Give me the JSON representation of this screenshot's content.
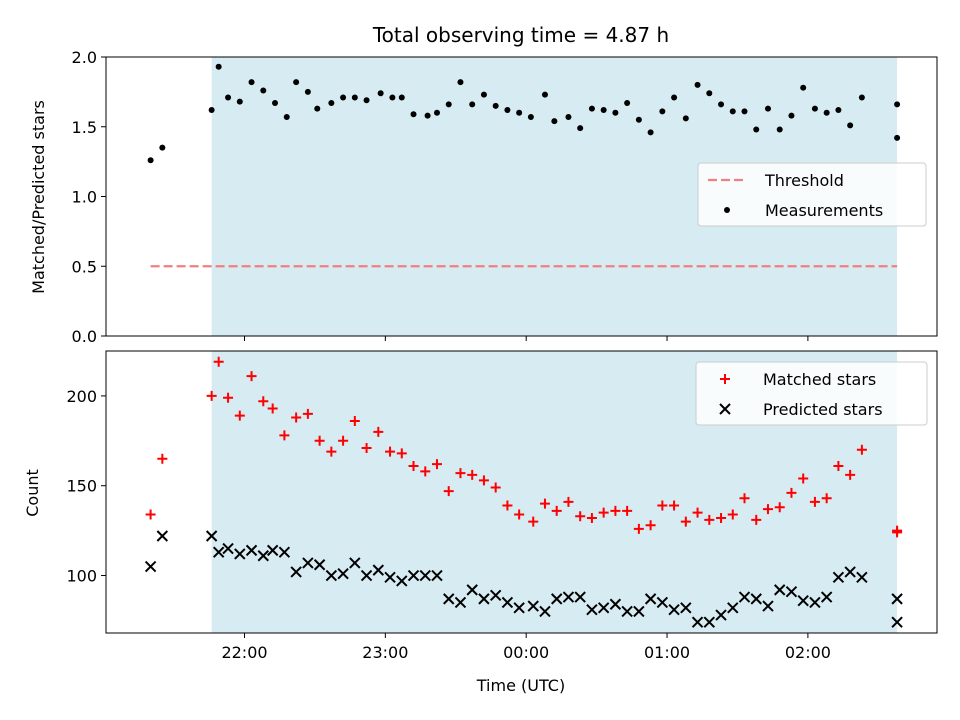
{
  "chart_data": [
    {
      "type": "scatter",
      "title": "Total observing time = 4.87 h",
      "ylabel": "Matched/Predicted stars",
      "xlabel": "",
      "xlim": [
        "21:01",
        "02:55"
      ],
      "ylim": [
        0,
        2.0
      ],
      "yticks": [
        "0.0",
        "0.5",
        "1.0",
        "1.5",
        "2.0"
      ],
      "shaded_interval": [
        "21:46",
        "02:38"
      ],
      "shade_color": "#add8e6",
      "legend": {
        "placement": "right",
        "entries": [
          "Threshold",
          "Measurements"
        ]
      },
      "series": [
        {
          "name": "Threshold",
          "style": "dashed-line",
          "color": "#f08080",
          "points": [
            [
              "21:20",
              0.5
            ],
            [
              "02:38",
              0.5
            ]
          ]
        },
        {
          "name": "Measurements",
          "style": "dot",
          "color": "#000000",
          "points": [
            [
              "21:20",
              1.26
            ],
            [
              "21:25",
              1.35
            ],
            [
              "21:46",
              1.62
            ],
            [
              "21:49",
              1.93
            ],
            [
              "21:53",
              1.71
            ],
            [
              "21:58",
              1.68
            ],
            [
              "22:03",
              1.82
            ],
            [
              "22:08",
              1.76
            ],
            [
              "22:13",
              1.67
            ],
            [
              "22:18",
              1.57
            ],
            [
              "22:22",
              1.82
            ],
            [
              "22:27",
              1.75
            ],
            [
              "22:31",
              1.63
            ],
            [
              "22:37",
              1.67
            ],
            [
              "22:42",
              1.71
            ],
            [
              "22:47",
              1.71
            ],
            [
              "22:52",
              1.69
            ],
            [
              "22:58",
              1.74
            ],
            [
              "23:03",
              1.71
            ],
            [
              "23:07",
              1.71
            ],
            [
              "23:12",
              1.59
            ],
            [
              "23:18",
              1.58
            ],
            [
              "23:22",
              1.6
            ],
            [
              "23:27",
              1.66
            ],
            [
              "23:32",
              1.82
            ],
            [
              "23:37",
              1.66
            ],
            [
              "23:42",
              1.73
            ],
            [
              "23:47",
              1.65
            ],
            [
              "23:52",
              1.62
            ],
            [
              "23:57",
              1.6
            ],
            [
              "00:02",
              1.57
            ],
            [
              "00:08",
              1.73
            ],
            [
              "00:12",
              1.54
            ],
            [
              "00:18",
              1.57
            ],
            [
              "00:23",
              1.49
            ],
            [
              "00:28",
              1.63
            ],
            [
              "00:33",
              1.62
            ],
            [
              "00:38",
              1.6
            ],
            [
              "00:43",
              1.67
            ],
            [
              "00:48",
              1.55
            ],
            [
              "00:53",
              1.46
            ],
            [
              "00:58",
              1.61
            ],
            [
              "01:03",
              1.71
            ],
            [
              "01:08",
              1.56
            ],
            [
              "01:13",
              1.8
            ],
            [
              "01:18",
              1.74
            ],
            [
              "01:23",
              1.66
            ],
            [
              "01:28",
              1.61
            ],
            [
              "01:33",
              1.61
            ],
            [
              "01:38",
              1.48
            ],
            [
              "01:43",
              1.63
            ],
            [
              "01:48",
              1.48
            ],
            [
              "01:53",
              1.58
            ],
            [
              "01:58",
              1.78
            ],
            [
              "02:03",
              1.63
            ],
            [
              "02:08",
              1.6
            ],
            [
              "02:13",
              1.62
            ],
            [
              "02:18",
              1.51
            ],
            [
              "02:23",
              1.71
            ],
            [
              "02:38",
              1.42
            ],
            [
              "02:38",
              1.66
            ]
          ]
        }
      ]
    },
    {
      "type": "scatter",
      "title": "",
      "ylabel": "Count",
      "xlabel": "Time (UTC)",
      "xlim": [
        "21:01",
        "02:55"
      ],
      "ylim": [
        68,
        225
      ],
      "yticks": [
        "100",
        "150",
        "200"
      ],
      "xticks": [
        "22:00",
        "23:00",
        "00:00",
        "01:00",
        "02:00"
      ],
      "shaded_interval": [
        "21:46",
        "02:38"
      ],
      "shade_color": "#add8e6",
      "legend": {
        "placement": "top-right",
        "entries": [
          "Matched stars",
          "Predicted stars"
        ]
      },
      "series": [
        {
          "name": "Matched stars",
          "style": "plus",
          "color": "#ff0000",
          "points": [
            [
              "21:20",
              134
            ],
            [
              "21:25",
              165
            ],
            [
              "21:46",
              200
            ],
            [
              "21:49",
              219
            ],
            [
              "21:53",
              199
            ],
            [
              "21:58",
              189
            ],
            [
              "22:03",
              211
            ],
            [
              "22:08",
              197
            ],
            [
              "22:12",
              193
            ],
            [
              "22:17",
              178
            ],
            [
              "22:22",
              188
            ],
            [
              "22:27",
              190
            ],
            [
              "22:32",
              175
            ],
            [
              "22:37",
              169
            ],
            [
              "22:42",
              175
            ],
            [
              "22:47",
              186
            ],
            [
              "22:52",
              171
            ],
            [
              "22:57",
              180
            ],
            [
              "23:02",
              169
            ],
            [
              "23:07",
              168
            ],
            [
              "23:12",
              161
            ],
            [
              "23:17",
              158
            ],
            [
              "23:22",
              162
            ],
            [
              "23:27",
              147
            ],
            [
              "23:32",
              157
            ],
            [
              "23:37",
              156
            ],
            [
              "23:42",
              153
            ],
            [
              "23:47",
              149
            ],
            [
              "23:52",
              139
            ],
            [
              "23:57",
              134
            ],
            [
              "00:03",
              130
            ],
            [
              "00:08",
              140
            ],
            [
              "00:13",
              136
            ],
            [
              "00:18",
              141
            ],
            [
              "00:23",
              133
            ],
            [
              "00:28",
              132
            ],
            [
              "00:33",
              135
            ],
            [
              "00:38",
              136
            ],
            [
              "00:43",
              136
            ],
            [
              "00:48",
              126
            ],
            [
              "00:53",
              128
            ],
            [
              "00:58",
              139
            ],
            [
              "01:03",
              139
            ],
            [
              "01:08",
              130
            ],
            [
              "01:13",
              135
            ],
            [
              "01:18",
              131
            ],
            [
              "01:23",
              132
            ],
            [
              "01:28",
              134
            ],
            [
              "01:33",
              143
            ],
            [
              "01:38",
              131
            ],
            [
              "01:43",
              137
            ],
            [
              "01:48",
              138
            ],
            [
              "01:53",
              146
            ],
            [
              "01:58",
              154
            ],
            [
              "02:03",
              141
            ],
            [
              "02:08",
              143
            ],
            [
              "02:13",
              161
            ],
            [
              "02:18",
              156
            ],
            [
              "02:23",
              170
            ],
            [
              "02:38",
              125
            ],
            [
              "02:38",
              124
            ]
          ]
        },
        {
          "name": "Predicted stars",
          "style": "x",
          "color": "#000000",
          "points": [
            [
              "21:20",
              105
            ],
            [
              "21:25",
              122
            ],
            [
              "21:46",
              122
            ],
            [
              "21:49",
              113
            ],
            [
              "21:53",
              115
            ],
            [
              "21:58",
              112
            ],
            [
              "22:03",
              114
            ],
            [
              "22:08",
              111
            ],
            [
              "22:12",
              114
            ],
            [
              "22:17",
              113
            ],
            [
              "22:22",
              102
            ],
            [
              "22:27",
              107
            ],
            [
              "22:32",
              106
            ],
            [
              "22:37",
              100
            ],
            [
              "22:42",
              101
            ],
            [
              "22:47",
              107
            ],
            [
              "22:52",
              100
            ],
            [
              "22:57",
              103
            ],
            [
              "23:02",
              99
            ],
            [
              "23:07",
              97
            ],
            [
              "23:12",
              100
            ],
            [
              "23:17",
              100
            ],
            [
              "23:22",
              100
            ],
            [
              "23:27",
              87
            ],
            [
              "23:32",
              85
            ],
            [
              "23:37",
              92
            ],
            [
              "23:42",
              87
            ],
            [
              "23:47",
              89
            ],
            [
              "23:52",
              85
            ],
            [
              "23:57",
              82
            ],
            [
              "00:03",
              83
            ],
            [
              "00:08",
              80
            ],
            [
              "00:13",
              87
            ],
            [
              "00:18",
              88
            ],
            [
              "00:23",
              88
            ],
            [
              "00:28",
              81
            ],
            [
              "00:33",
              82
            ],
            [
              "00:38",
              84
            ],
            [
              "00:43",
              80
            ],
            [
              "00:48",
              80
            ],
            [
              "00:53",
              87
            ],
            [
              "00:58",
              85
            ],
            [
              "01:03",
              81
            ],
            [
              "01:08",
              82
            ],
            [
              "01:13",
              74
            ],
            [
              "01:18",
              74
            ],
            [
              "01:23",
              78
            ],
            [
              "01:28",
              82
            ],
            [
              "01:33",
              88
            ],
            [
              "01:38",
              87
            ],
            [
              "01:43",
              83
            ],
            [
              "01:48",
              92
            ],
            [
              "01:53",
              91
            ],
            [
              "01:58",
              86
            ],
            [
              "02:03",
              85
            ],
            [
              "02:08",
              88
            ],
            [
              "02:13",
              99
            ],
            [
              "02:18",
              102
            ],
            [
              "02:23",
              99
            ],
            [
              "02:38",
              87
            ],
            [
              "02:38",
              74
            ]
          ]
        }
      ]
    }
  ]
}
